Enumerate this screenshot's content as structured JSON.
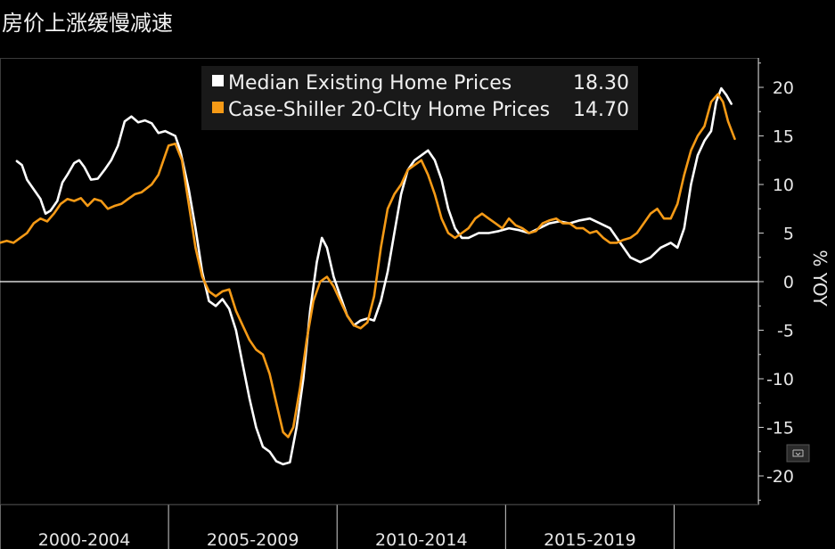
{
  "title": "房价上涨缓慢减速",
  "colors": {
    "background": "#000000",
    "series1": "#ffffff",
    "series2": "#f59a16",
    "zero_line": "#ffffff",
    "legend_bg": "#1a1a1a"
  },
  "chart_data": {
    "type": "line",
    "ylabel": "% YOY",
    "ylim": [
      -23,
      23
    ],
    "yticks": [
      20,
      15,
      10,
      5,
      0,
      -5,
      -10,
      -15,
      -20
    ],
    "xlim": [
      2000.0,
      2022.5
    ],
    "xticks": [
      {
        "label": "2000-2004",
        "mid": 2002.5
      },
      {
        "label": "2005-2009",
        "mid": 2007.5
      },
      {
        "label": "2010-2014",
        "mid": 2012.5
      },
      {
        "label": "2015-2019",
        "mid": 2017.5
      }
    ],
    "xdividers": [
      2000,
      2005,
      2010,
      2015,
      2020
    ],
    "legend_position": "top-center",
    "series": [
      {
        "name": "Median Existing Home Prices",
        "last_value": "18.30",
        "color": "#ffffff",
        "points": [
          [
            2000.5,
            12.4
          ],
          [
            2000.65,
            12.0
          ],
          [
            2000.8,
            10.5
          ],
          [
            2001.0,
            9.5
          ],
          [
            2001.2,
            8.5
          ],
          [
            2001.35,
            7.0
          ],
          [
            2001.5,
            7.3
          ],
          [
            2001.7,
            8.3
          ],
          [
            2001.85,
            10.2
          ],
          [
            2002.0,
            11.0
          ],
          [
            2002.2,
            12.2
          ],
          [
            2002.35,
            12.5
          ],
          [
            2002.5,
            11.8
          ],
          [
            2002.7,
            10.5
          ],
          [
            2002.9,
            10.6
          ],
          [
            2003.1,
            11.5
          ],
          [
            2003.3,
            12.5
          ],
          [
            2003.5,
            14.0
          ],
          [
            2003.7,
            16.5
          ],
          [
            2003.9,
            17.0
          ],
          [
            2004.1,
            16.4
          ],
          [
            2004.3,
            16.6
          ],
          [
            2004.5,
            16.3
          ],
          [
            2004.7,
            15.3
          ],
          [
            2004.9,
            15.5
          ],
          [
            2005.2,
            15.0
          ],
          [
            2005.35,
            13.5
          ],
          [
            2005.6,
            9.5
          ],
          [
            2005.8,
            5.5
          ],
          [
            2006.0,
            1.0
          ],
          [
            2006.2,
            -2.0
          ],
          [
            2006.4,
            -2.5
          ],
          [
            2006.6,
            -1.8
          ],
          [
            2006.8,
            -2.8
          ],
          [
            2007.0,
            -5.0
          ],
          [
            2007.2,
            -8.5
          ],
          [
            2007.4,
            -12.0
          ],
          [
            2007.6,
            -15.0
          ],
          [
            2007.8,
            -17.0
          ],
          [
            2008.0,
            -17.5
          ],
          [
            2008.2,
            -18.5
          ],
          [
            2008.4,
            -18.8
          ],
          [
            2008.6,
            -18.6
          ],
          [
            2008.8,
            -15.0
          ],
          [
            2009.0,
            -10.0
          ],
          [
            2009.2,
            -3.0
          ],
          [
            2009.4,
            2.0
          ],
          [
            2009.55,
            4.5
          ],
          [
            2009.7,
            3.5
          ],
          [
            2009.9,
            0.5
          ],
          [
            2010.1,
            -1.5
          ],
          [
            2010.3,
            -3.5
          ],
          [
            2010.5,
            -4.5
          ],
          [
            2010.7,
            -4.0
          ],
          [
            2010.9,
            -3.8
          ],
          [
            2011.1,
            -4.0
          ],
          [
            2011.3,
            -2.0
          ],
          [
            2011.5,
            1.0
          ],
          [
            2011.7,
            5.0
          ],
          [
            2011.9,
            9.0
          ],
          [
            2012.1,
            11.5
          ],
          [
            2012.3,
            12.5
          ],
          [
            2012.5,
            13.0
          ],
          [
            2012.7,
            13.5
          ],
          [
            2012.9,
            12.5
          ],
          [
            2013.1,
            10.5
          ],
          [
            2013.3,
            7.5
          ],
          [
            2013.5,
            5.5
          ],
          [
            2013.7,
            4.5
          ],
          [
            2013.9,
            4.5
          ],
          [
            2014.2,
            5.0
          ],
          [
            2014.5,
            5.0
          ],
          [
            2014.8,
            5.2
          ],
          [
            2015.1,
            5.5
          ],
          [
            2015.4,
            5.3
          ],
          [
            2015.7,
            5.0
          ],
          [
            2016.0,
            5.5
          ],
          [
            2016.3,
            6.0
          ],
          [
            2016.6,
            6.2
          ],
          [
            2016.9,
            6.0
          ],
          [
            2017.2,
            6.3
          ],
          [
            2017.5,
            6.5
          ],
          [
            2017.8,
            6.0
          ],
          [
            2018.1,
            5.5
          ],
          [
            2018.4,
            4.0
          ],
          [
            2018.7,
            2.5
          ],
          [
            2019.0,
            2.0
          ],
          [
            2019.3,
            2.5
          ],
          [
            2019.6,
            3.5
          ],
          [
            2019.9,
            4.0
          ],
          [
            2020.1,
            3.5
          ],
          [
            2020.3,
            5.5
          ],
          [
            2020.5,
            10.0
          ],
          [
            2020.7,
            13.0
          ],
          [
            2020.9,
            14.5
          ],
          [
            2021.1,
            15.5
          ],
          [
            2021.25,
            18.5
          ],
          [
            2021.4,
            19.9
          ],
          [
            2021.55,
            19.2
          ],
          [
            2021.7,
            18.3
          ]
        ]
      },
      {
        "name": "Case-Shiller 20-CIty Home Prices",
        "last_value": "14.70",
        "color": "#f59a16",
        "points": [
          [
            2000.0,
            4.0
          ],
          [
            2000.2,
            4.2
          ],
          [
            2000.4,
            4.0
          ],
          [
            2000.6,
            4.5
          ],
          [
            2000.8,
            5.0
          ],
          [
            2001.0,
            6.0
          ],
          [
            2001.2,
            6.5
          ],
          [
            2001.4,
            6.2
          ],
          [
            2001.6,
            7.0
          ],
          [
            2001.8,
            8.0
          ],
          [
            2002.0,
            8.5
          ],
          [
            2002.2,
            8.3
          ],
          [
            2002.4,
            8.6
          ],
          [
            2002.6,
            7.8
          ],
          [
            2002.8,
            8.5
          ],
          [
            2003.0,
            8.3
          ],
          [
            2003.2,
            7.5
          ],
          [
            2003.4,
            7.8
          ],
          [
            2003.6,
            8.0
          ],
          [
            2003.8,
            8.5
          ],
          [
            2004.0,
            9.0
          ],
          [
            2004.2,
            9.2
          ],
          [
            2004.5,
            10.0
          ],
          [
            2004.7,
            11.0
          ],
          [
            2004.85,
            12.5
          ],
          [
            2005.0,
            14.0
          ],
          [
            2005.2,
            14.2
          ],
          [
            2005.4,
            12.5
          ],
          [
            2005.6,
            8.0
          ],
          [
            2005.8,
            3.5
          ],
          [
            2006.0,
            0.5
          ],
          [
            2006.2,
            -1.0
          ],
          [
            2006.4,
            -1.5
          ],
          [
            2006.6,
            -1.0
          ],
          [
            2006.8,
            -0.8
          ],
          [
            2007.0,
            -3.0
          ],
          [
            2007.2,
            -4.5
          ],
          [
            2007.4,
            -6.0
          ],
          [
            2007.6,
            -7.0
          ],
          [
            2007.8,
            -7.5
          ],
          [
            2008.0,
            -9.5
          ],
          [
            2008.2,
            -12.5
          ],
          [
            2008.4,
            -15.5
          ],
          [
            2008.55,
            -16.0
          ],
          [
            2008.7,
            -15.0
          ],
          [
            2008.9,
            -11.0
          ],
          [
            2009.1,
            -6.0
          ],
          [
            2009.3,
            -2.0
          ],
          [
            2009.5,
            0.0
          ],
          [
            2009.7,
            0.5
          ],
          [
            2009.9,
            -0.5
          ],
          [
            2010.1,
            -2.0
          ],
          [
            2010.3,
            -3.5
          ],
          [
            2010.5,
            -4.5
          ],
          [
            2010.7,
            -4.8
          ],
          [
            2010.9,
            -4.2
          ],
          [
            2011.1,
            -1.5
          ],
          [
            2011.3,
            3.5
          ],
          [
            2011.5,
            7.5
          ],
          [
            2011.7,
            9.0
          ],
          [
            2011.9,
            10.0
          ],
          [
            2012.1,
            11.5
          ],
          [
            2012.3,
            12.0
          ],
          [
            2012.5,
            12.5
          ],
          [
            2012.7,
            11.0
          ],
          [
            2012.9,
            9.0
          ],
          [
            2013.1,
            6.5
          ],
          [
            2013.3,
            5.0
          ],
          [
            2013.5,
            4.5
          ],
          [
            2013.7,
            5.0
          ],
          [
            2013.9,
            5.5
          ],
          [
            2014.1,
            6.5
          ],
          [
            2014.3,
            7.0
          ],
          [
            2014.5,
            6.5
          ],
          [
            2014.7,
            6.0
          ],
          [
            2014.9,
            5.5
          ],
          [
            2015.1,
            6.5
          ],
          [
            2015.3,
            5.8
          ],
          [
            2015.5,
            5.5
          ],
          [
            2015.7,
            5.0
          ],
          [
            2015.9,
            5.2
          ],
          [
            2016.1,
            6.0
          ],
          [
            2016.3,
            6.3
          ],
          [
            2016.5,
            6.5
          ],
          [
            2016.7,
            6.0
          ],
          [
            2016.9,
            6.0
          ],
          [
            2017.1,
            5.5
          ],
          [
            2017.3,
            5.5
          ],
          [
            2017.5,
            5.0
          ],
          [
            2017.7,
            5.2
          ],
          [
            2017.9,
            4.5
          ],
          [
            2018.1,
            4.0
          ],
          [
            2018.3,
            4.0
          ],
          [
            2018.5,
            4.3
          ],
          [
            2018.7,
            4.5
          ],
          [
            2018.9,
            5.0
          ],
          [
            2019.1,
            6.0
          ],
          [
            2019.3,
            7.0
          ],
          [
            2019.5,
            7.5
          ],
          [
            2019.7,
            6.5
          ],
          [
            2019.9,
            6.5
          ],
          [
            2020.1,
            8.0
          ],
          [
            2020.3,
            11.0
          ],
          [
            2020.5,
            13.5
          ],
          [
            2020.7,
            15.0
          ],
          [
            2020.9,
            16.0
          ],
          [
            2021.1,
            18.5
          ],
          [
            2021.3,
            19.3
          ],
          [
            2021.45,
            18.5
          ],
          [
            2021.6,
            16.5
          ],
          [
            2021.8,
            14.7
          ]
        ]
      }
    ]
  }
}
